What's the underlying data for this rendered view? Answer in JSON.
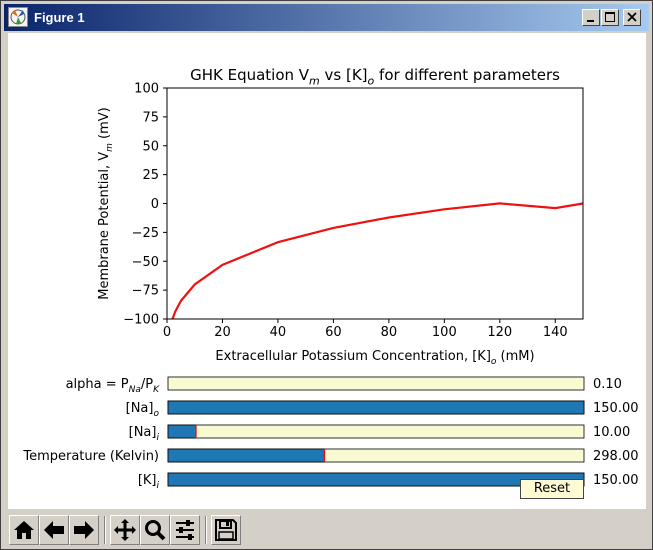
{
  "window": {
    "title": "Figure 1"
  },
  "chart_data": {
    "type": "line",
    "title": "GHK Equation V$_m$ vs [K]$_o$ for different parameters",
    "xlabel": "Extracellular Potassium Concentration, [K]$_o$ (mM)",
    "ylabel": "Membrane Potential, V$_m$ (mV)",
    "xlim": [
      0,
      150
    ],
    "ylim": [
      -100,
      100
    ],
    "xticks": [
      0,
      20,
      40,
      60,
      80,
      100,
      120,
      140
    ],
    "yticks": [
      100,
      75,
      50,
      25,
      0,
      -25,
      -50,
      -75,
      -100
    ],
    "grid": false,
    "series": [
      {
        "color": "#ee1111",
        "x": [
          2,
          3,
          5,
          10,
          20,
          40,
          60,
          80,
          100,
          120,
          140,
          150
        ],
        "y": [
          -100.0,
          -93.4,
          -84.3,
          -70.1,
          -53.1,
          -33.5,
          -21.1,
          -12.1,
          -5.0,
          0.1,
          -4.0,
          0.0
        ]
      }
    ]
  },
  "controls": {
    "sliders": [
      {
        "label": "alpha = P$_{Na}$/P$_K$",
        "value_text": "0.10",
        "fraction": 0.0,
        "marker": false
      },
      {
        "label": "[Na]$_o$",
        "value_text": "150.00",
        "fraction": 1.0,
        "marker": false
      },
      {
        "label": "[Na]$_i$",
        "value_text": "10.00",
        "fraction": 0.067,
        "marker": true
      },
      {
        "label": "Temperature (Kelvin)",
        "value_text": "298.00",
        "fraction": 0.376,
        "marker": true
      },
      {
        "label": "[K]$_i$",
        "value_text": "150.00",
        "fraction": 1.0,
        "marker": false
      }
    ],
    "reset_label": "Reset",
    "filled_color": "#1f77b4",
    "empty_color": "#fafad2",
    "marker_color": "#ee1111"
  },
  "toolbar": {
    "buttons": [
      "home-icon",
      "back-arrow-icon",
      "forward-arrow-icon",
      "pan-icon",
      "zoom-icon",
      "configure-subplots-icon",
      "save-icon"
    ]
  }
}
